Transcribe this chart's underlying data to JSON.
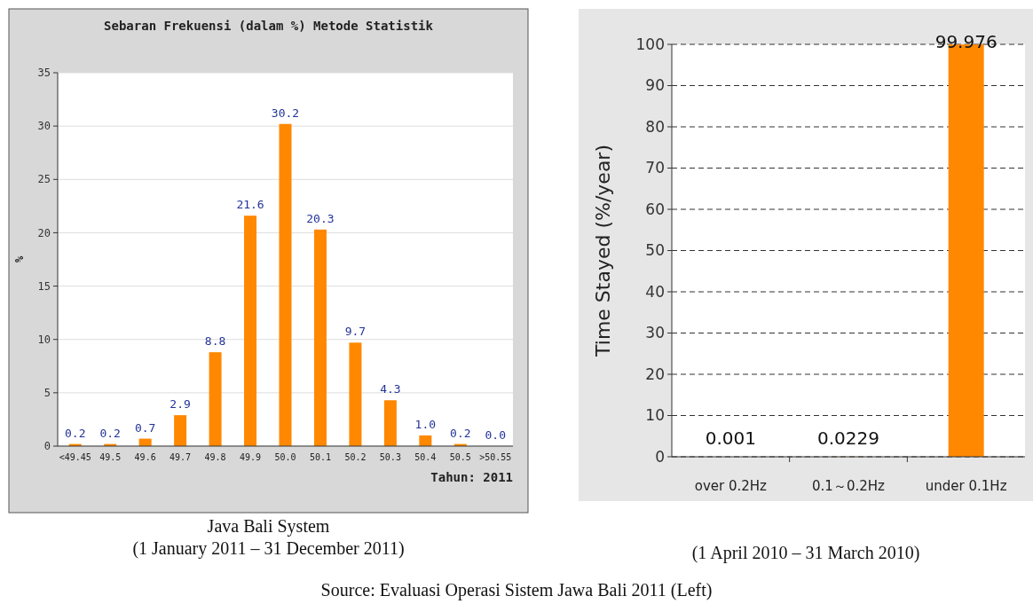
{
  "chart_data": [
    {
      "type": "bar",
      "title": "Sebaran Frekuensi (dalam %) Metode Statistik",
      "ylabel": "%",
      "categories": [
        "<49.45",
        "49.5",
        "49.6",
        "49.7",
        "49.8",
        "49.9",
        "50.0",
        "50.1",
        "50.2",
        "50.3",
        "50.4",
        "50.5",
        ">50.55"
      ],
      "values": [
        0.2,
        0.2,
        0.7,
        2.9,
        8.8,
        21.6,
        30.2,
        20.3,
        9.7,
        4.3,
        1.0,
        0.2,
        0.0
      ],
      "value_labels": [
        "0.2",
        "0.2",
        "0.7",
        "2.9",
        "8.8",
        "21.6",
        "30.2",
        "20.3",
        "9.7",
        "4.3",
        "1.0",
        "0.2",
        "0.0"
      ],
      "color": "#ff8800",
      "ylim": [
        0,
        35
      ],
      "yticks": [
        0,
        5,
        10,
        15,
        20,
        25,
        30,
        35
      ],
      "grid": "y",
      "annotations": [
        "Tahun: 2011",
        "Java Bali System",
        "(1 January 2011 – 31 December 2011)",
        "Source: Evaluasi Operasi Sistem Jawa Bali 2011 (Left)"
      ]
    },
    {
      "type": "bar",
      "ylabel": "Time Stayed (%/year)",
      "categories": [
        "over 0.2Hz",
        "0.1～0.2Hz",
        "under 0.1Hz"
      ],
      "values": [
        0.001,
        0.0229,
        99.976
      ],
      "color": "#ff8800",
      "data_labels": true,
      "ylim": [
        0,
        100
      ],
      "yticks": [
        0,
        10,
        20,
        30,
        40,
        50,
        60,
        70,
        80,
        90,
        100
      ],
      "grid": "y",
      "annotations": [
        "(1 April 2010 – 31 March 2010)"
      ]
    }
  ]
}
